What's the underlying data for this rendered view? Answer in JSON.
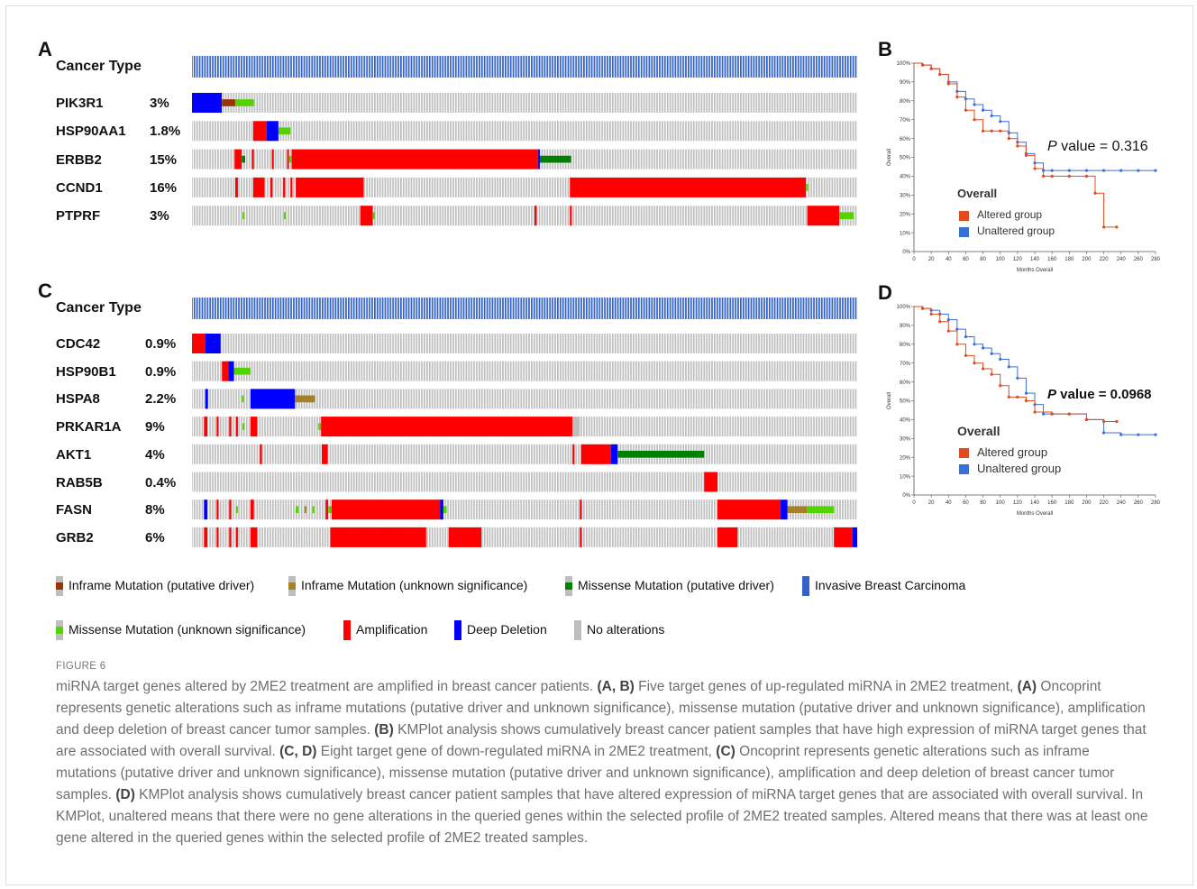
{
  "panels": {
    "A": {
      "letter": "A",
      "cancer_type_label": "Cancer Type",
      "genes": [
        {
          "name": "PIK3R1",
          "pct": "3%"
        },
        {
          "name": "HSP90AA1",
          "pct": "1.8%"
        },
        {
          "name": "ERBB2",
          "pct": "15%"
        },
        {
          "name": "CCND1",
          "pct": "16%"
        },
        {
          "name": "PTPRF",
          "pct": "3%"
        }
      ]
    },
    "B": {
      "letter": "B",
      "pvalue_prefix": "P",
      "pvalue_text": " value = 0.316",
      "legend_title": "Overall",
      "legend_items": [
        "Altered group",
        "Unaltered group"
      ],
      "ylabel": "Overall",
      "xlabel": "Months Overall"
    },
    "C": {
      "letter": "C",
      "cancer_type_label": "Cancer Type",
      "genes": [
        {
          "name": "CDC42",
          "pct": "0.9%"
        },
        {
          "name": "HSP90B1",
          "pct": "0.9%"
        },
        {
          "name": "HSPA8",
          "pct": "2.2%"
        },
        {
          "name": "PRKAR1A",
          "pct": "9%"
        },
        {
          "name": "AKT1",
          "pct": "4%"
        },
        {
          "name": "RAB5B",
          "pct": "0.4%"
        },
        {
          "name": "FASN",
          "pct": "8%"
        },
        {
          "name": "GRB2",
          "pct": "6%"
        }
      ]
    },
    "D": {
      "letter": "D",
      "pvalue_prefix": "P",
      "pvalue_text": " value = 0.0968",
      "legend_title": "Overall",
      "legend_items": [
        "Altered group",
        "Unaltered group"
      ],
      "ylabel": "Overall",
      "xlabel": "Months Overall"
    }
  },
  "legend": [
    {
      "label": "Inframe Mutation (putative driver)",
      "color": "#993404"
    },
    {
      "label": "Inframe Mutation (unknown significance)",
      "color": "#a68028"
    },
    {
      "label": "Missense Mutation (putative driver)",
      "color": "#008000"
    },
    {
      "label": "Invasive Breast Carcinoma",
      "color": "#3161c9"
    },
    {
      "label": "Missense Mutation (unknown significance)",
      "color": "#53d400"
    },
    {
      "label": "Amplification",
      "color": "#ff0000"
    },
    {
      "label": "Deep Deletion",
      "color": "#0000ff"
    },
    {
      "label": "No alterations",
      "color": "#bebebe"
    }
  ],
  "colors": {
    "amplification": "#ff0000",
    "deep_deletion": "#0000ff",
    "missense_unknown": "#53d400",
    "missense_driver": "#008000",
    "inframe_driver": "#993404",
    "inframe_unknown": "#a68028",
    "no_alteration": "#bebebe",
    "cancer_type": "#3161c9",
    "km_altered": "#e04b1f",
    "km_unaltered": "#3a6fd8"
  },
  "oncoprint": {
    "A": [
      [
        {
          "s": 0,
          "e": 4.5,
          "t": "deep_deletion"
        },
        {
          "s": 4.5,
          "e": 6.5,
          "t": "inframe_driver"
        },
        {
          "s": 6.5,
          "e": 9.3,
          "t": "missense_unknown"
        }
      ],
      [
        {
          "s": 9.2,
          "e": 11.2,
          "t": "amplification"
        },
        {
          "s": 11.2,
          "e": 13,
          "t": "deep_deletion"
        },
        {
          "s": 13,
          "e": 14.8,
          "t": "missense_unknown"
        }
      ],
      [
        {
          "s": 6.4,
          "e": 7.5,
          "t": "amplification"
        },
        {
          "s": 7.5,
          "e": 8,
          "t": "missense_driver"
        },
        {
          "s": 9,
          "e": 9.3,
          "t": "amplification"
        },
        {
          "s": 12,
          "e": 12.3,
          "t": "amplification"
        },
        {
          "s": 14.3,
          "e": 14.6,
          "t": "amplification"
        },
        {
          "s": 14.6,
          "e": 15,
          "t": "missense_unknown"
        },
        {
          "s": 15,
          "e": 52,
          "t": "amplification"
        },
        {
          "s": 52,
          "e": 52.3,
          "t": "deep_deletion"
        },
        {
          "s": 52.3,
          "e": 57,
          "t": "missense_driver"
        }
      ],
      [
        {
          "s": 6.5,
          "e": 6.9,
          "t": "amplification"
        },
        {
          "s": 9.2,
          "e": 10.9,
          "t": "amplification"
        },
        {
          "s": 11.8,
          "e": 12.1,
          "t": "amplification"
        },
        {
          "s": 13.7,
          "e": 14,
          "t": "amplification"
        },
        {
          "s": 14.8,
          "e": 15.1,
          "t": "amplification"
        },
        {
          "s": 15.6,
          "e": 25.8,
          "t": "amplification"
        },
        {
          "s": 56.8,
          "e": 92.3,
          "t": "amplification"
        },
        {
          "s": 92.3,
          "e": 92.6,
          "t": "missense_unknown"
        }
      ],
      [
        {
          "s": 7.6,
          "e": 7.9,
          "t": "missense_unknown"
        },
        {
          "s": 13.8,
          "e": 14.1,
          "t": "missense_unknown"
        },
        {
          "s": 25.3,
          "e": 27.2,
          "t": "amplification"
        },
        {
          "s": 27.2,
          "e": 27.5,
          "t": "missense_unknown"
        },
        {
          "s": 51.5,
          "e": 51.8,
          "t": "amplification"
        },
        {
          "s": 56.8,
          "e": 57.1,
          "t": "amplification"
        },
        {
          "s": 92.5,
          "e": 97.3,
          "t": "amplification"
        },
        {
          "s": 97.3,
          "e": 99.5,
          "t": "missense_unknown"
        }
      ]
    ],
    "C": [
      [
        {
          "s": 0,
          "e": 2,
          "t": "amplification"
        },
        {
          "s": 2,
          "e": 4.3,
          "t": "deep_deletion"
        }
      ],
      [
        {
          "s": 4.5,
          "e": 5.5,
          "t": "amplification"
        },
        {
          "s": 5.5,
          "e": 6.3,
          "t": "deep_deletion"
        },
        {
          "s": 6.3,
          "e": 8.8,
          "t": "missense_unknown"
        }
      ],
      [
        {
          "s": 2,
          "e": 2.4,
          "t": "deep_deletion"
        },
        {
          "s": 7.5,
          "e": 7.8,
          "t": "missense_unknown"
        },
        {
          "s": 8.8,
          "e": 15.5,
          "t": "deep_deletion"
        },
        {
          "s": 15.5,
          "e": 18.5,
          "t": "inframe_unknown"
        }
      ],
      [
        {
          "s": 1.8,
          "e": 2.3,
          "t": "amplification"
        },
        {
          "s": 3.7,
          "e": 4,
          "t": "amplification"
        },
        {
          "s": 5.6,
          "e": 5.9,
          "t": "amplification"
        },
        {
          "s": 6.6,
          "e": 6.9,
          "t": "amplification"
        },
        {
          "s": 7.6,
          "e": 7.9,
          "t": "missense_unknown"
        },
        {
          "s": 8.8,
          "e": 9.8,
          "t": "amplification"
        },
        {
          "s": 19,
          "e": 19.4,
          "t": "missense_unknown"
        },
        {
          "s": 19.4,
          "e": 57.2,
          "t": "amplification"
        },
        {
          "s": 57.2,
          "e": 58.3,
          "t": "no_alteration"
        }
      ],
      [
        {
          "s": 10.2,
          "e": 10.5,
          "t": "amplification"
        },
        {
          "s": 19.5,
          "e": 20.4,
          "t": "amplification"
        },
        {
          "s": 57.2,
          "e": 57.5,
          "t": "amplification"
        },
        {
          "s": 58.5,
          "e": 63,
          "t": "amplification"
        },
        {
          "s": 63,
          "e": 64,
          "t": "deep_deletion"
        },
        {
          "s": 64,
          "e": 77,
          "t": "missense_driver"
        }
      ],
      [
        {
          "s": 77,
          "e": 79,
          "t": "amplification"
        }
      ],
      [
        {
          "s": 1.8,
          "e": 2.3,
          "t": "deep_deletion"
        },
        {
          "s": 3.7,
          "e": 4,
          "t": "amplification"
        },
        {
          "s": 5.6,
          "e": 5.9,
          "t": "amplification"
        },
        {
          "s": 6.6,
          "e": 6.9,
          "t": "missense_unknown"
        },
        {
          "s": 8.8,
          "e": 9.3,
          "t": "amplification"
        },
        {
          "s": 15.6,
          "e": 16,
          "t": "missense_unknown"
        },
        {
          "s": 16.9,
          "e": 17.2,
          "t": "inframe_unknown"
        },
        {
          "s": 18.1,
          "e": 18.4,
          "t": "missense_unknown"
        },
        {
          "s": 20.1,
          "e": 20.5,
          "t": "amplification"
        },
        {
          "s": 20.5,
          "e": 21,
          "t": "missense_unknown"
        },
        {
          "s": 21,
          "e": 37.3,
          "t": "amplification"
        },
        {
          "s": 37.3,
          "e": 37.8,
          "t": "deep_deletion"
        },
        {
          "s": 37.8,
          "e": 38.3,
          "t": "missense_unknown"
        },
        {
          "s": 58.3,
          "e": 58.6,
          "t": "amplification"
        },
        {
          "s": 79,
          "e": 88.5,
          "t": "amplification"
        },
        {
          "s": 88.5,
          "e": 89.5,
          "t": "deep_deletion"
        },
        {
          "s": 89.5,
          "e": 92.5,
          "t": "inframe_unknown"
        },
        {
          "s": 92.5,
          "e": 96.5,
          "t": "missense_unknown"
        }
      ],
      [
        {
          "s": 1.8,
          "e": 2.3,
          "t": "amplification"
        },
        {
          "s": 3.7,
          "e": 4,
          "t": "amplification"
        },
        {
          "s": 5.6,
          "e": 5.9,
          "t": "amplification"
        },
        {
          "s": 6.6,
          "e": 6.9,
          "t": "amplification"
        },
        {
          "s": 8.8,
          "e": 9.8,
          "t": "amplification"
        },
        {
          "s": 20.8,
          "e": 35.2,
          "t": "amplification"
        },
        {
          "s": 38.6,
          "e": 43.5,
          "t": "amplification"
        },
        {
          "s": 58.3,
          "e": 58.6,
          "t": "amplification"
        },
        {
          "s": 79,
          "e": 82,
          "t": "amplification"
        },
        {
          "s": 96.5,
          "e": 99.3,
          "t": "amplification"
        },
        {
          "s": 99.3,
          "e": 100,
          "t": "deep_deletion"
        }
      ]
    ]
  },
  "chart_data": [
    {
      "panel": "B",
      "type": "line",
      "xlabel": "Months Overall",
      "ylabel": "Overall",
      "xlim": [
        0,
        280
      ],
      "ylim": [
        0,
        100
      ],
      "x_ticks": [
        0,
        20,
        40,
        60,
        80,
        100,
        120,
        140,
        160,
        180,
        200,
        220,
        240,
        260,
        280
      ],
      "y_ticks": [
        "0%",
        "10%",
        "20%",
        "30%",
        "40%",
        "50%",
        "60%",
        "70%",
        "80%",
        "90%",
        "100%"
      ],
      "series": [
        {
          "name": "Altered group",
          "x": [
            0,
            10,
            20,
            30,
            40,
            50,
            60,
            70,
            80,
            90,
            100,
            110,
            120,
            130,
            140,
            150,
            160,
            180,
            200,
            210,
            220,
            235
          ],
          "y": [
            100,
            99,
            97,
            94,
            89,
            82,
            75,
            70,
            64,
            64,
            64,
            60,
            56,
            51,
            44,
            40,
            40,
            40,
            40,
            31,
            13,
            13
          ]
        },
        {
          "name": "Unaltered group",
          "x": [
            0,
            10,
            20,
            30,
            40,
            50,
            60,
            70,
            80,
            90,
            100,
            110,
            120,
            130,
            140,
            150,
            160,
            180,
            200,
            220,
            240,
            260,
            280
          ],
          "y": [
            100,
            99,
            97,
            94,
            90,
            85,
            81,
            78,
            75,
            72,
            69,
            63,
            58,
            52,
            47,
            43,
            43,
            43,
            43,
            43,
            43,
            43,
            43
          ]
        }
      ]
    },
    {
      "panel": "D",
      "type": "line",
      "xlabel": "Months Overall",
      "ylabel": "Overall",
      "xlim": [
        0,
        280
      ],
      "ylim": [
        0,
        100
      ],
      "x_ticks": [
        0,
        20,
        40,
        60,
        80,
        100,
        120,
        140,
        160,
        180,
        200,
        220,
        240,
        260,
        280
      ],
      "y_ticks": [
        "0%",
        "10%",
        "20%",
        "30%",
        "40%",
        "50%",
        "60%",
        "70%",
        "80%",
        "90%",
        "100%"
      ],
      "series": [
        {
          "name": "Altered group",
          "x": [
            0,
            10,
            20,
            30,
            40,
            50,
            60,
            70,
            80,
            90,
            100,
            110,
            120,
            130,
            140,
            160,
            180,
            200,
            220,
            235
          ],
          "y": [
            100,
            99,
            96,
            92,
            87,
            80,
            74,
            70,
            67,
            64,
            58,
            52,
            52,
            50,
            44,
            43,
            43,
            40,
            39,
            39
          ]
        },
        {
          "name": "Unaltered group",
          "x": [
            0,
            10,
            20,
            30,
            40,
            50,
            60,
            70,
            80,
            90,
            100,
            110,
            120,
            130,
            140,
            150,
            160,
            180,
            200,
            220,
            240,
            260,
            280
          ],
          "y": [
            100,
            99,
            98,
            96,
            93,
            88,
            84,
            80,
            78,
            75,
            72,
            68,
            62,
            54,
            48,
            43,
            43,
            43,
            40,
            33,
            32,
            32,
            32
          ]
        }
      ]
    }
  ],
  "figure_label": "FIGURE 6",
  "caption": [
    {
      "t": "miRNA target genes altered by 2ME2 treatment are amplified in breast cancer patients. "
    },
    {
      "t": "(A, B)",
      "b": true
    },
    {
      "t": " Five target genes of up-regulated miRNA in 2ME2 treatment, "
    },
    {
      "t": "(A)",
      "b": true
    },
    {
      "t": " Oncoprint represents genetic alterations such as inframe mutations (putative driver and unknown significance), missense mutation (putative driver and unknown significance), amplification and deep deletion of breast cancer tumor samples. "
    },
    {
      "t": "(B)",
      "b": true
    },
    {
      "t": " KMPlot analysis shows cumulatively breast cancer patient samples that have high expression of miRNA target genes that are associated with overall survival. "
    },
    {
      "t": "(C, D)",
      "b": true
    },
    {
      "t": " Eight target gene of down-regulated miRNA in 2ME2 treatment, "
    },
    {
      "t": "(C)",
      "b": true
    },
    {
      "t": " Oncoprint represents genetic alterations such as inframe mutations (putative driver and unknown significance), missense mutation (putative driver and unknown significance), amplification and deep deletion of breast cancer tumor samples. "
    },
    {
      "t": "(D)",
      "b": true
    },
    {
      "t": " KMPlot analysis shows cumulatively breast cancer patient samples that have altered expression of miRNA target genes that are associated with overall survival. In KMPlot, unaltered means that there were no gene alterations in the queried genes within the selected profile of 2ME2 treated samples. Altered means that there was at least one gene altered in the queried genes within the selected profile of 2ME2 treated samples."
    }
  ]
}
